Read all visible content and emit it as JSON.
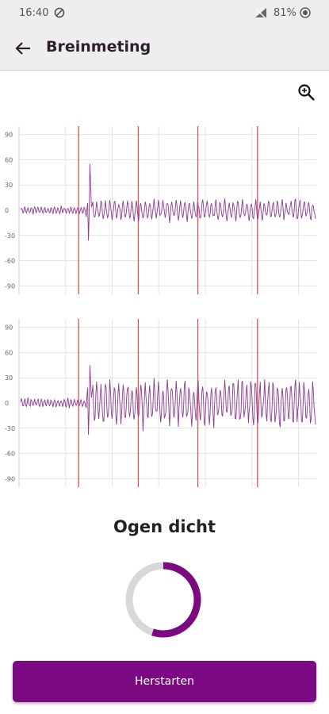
{
  "status": {
    "time": "16:40",
    "battery": "81%"
  },
  "header": {
    "title": "Breinmeting"
  },
  "icons": {
    "back": "arrow-left-icon",
    "zoom": "zoom-in-icon"
  },
  "colors": {
    "accent": "#7b0a82",
    "signal": "#8c3a92",
    "marker": "#d9534f",
    "grid": "#e3e3e3",
    "ring_track": "#d8d8d8"
  },
  "chart_data": [
    {
      "type": "line",
      "y_ticks": [
        "90",
        "60",
        "30",
        "0",
        "-30",
        "-60",
        "-90"
      ],
      "ylim": [
        -100,
        100
      ],
      "event_markers": [
        0.2,
        0.4,
        0.6,
        0.8
      ],
      "series": [
        {
          "seed": 11,
          "amp_pre": 4,
          "amp_post": 11,
          "spike": 55,
          "dip": -36
        }
      ]
    },
    {
      "type": "line",
      "y_ticks": [
        "90",
        "60",
        "30",
        "0",
        "-30",
        "-60",
        "-90"
      ],
      "ylim": [
        -100,
        100
      ],
      "event_markers": [
        0.2,
        0.4,
        0.6,
        0.8
      ],
      "series": [
        {
          "seed": 23,
          "amp_pre": 5,
          "amp_post": 25,
          "spike": 45,
          "dip": -38
        }
      ]
    }
  ],
  "main": {
    "prompt": "Ogen dicht",
    "progress": 0.55
  },
  "actions": {
    "restart_label": "Herstarten"
  }
}
